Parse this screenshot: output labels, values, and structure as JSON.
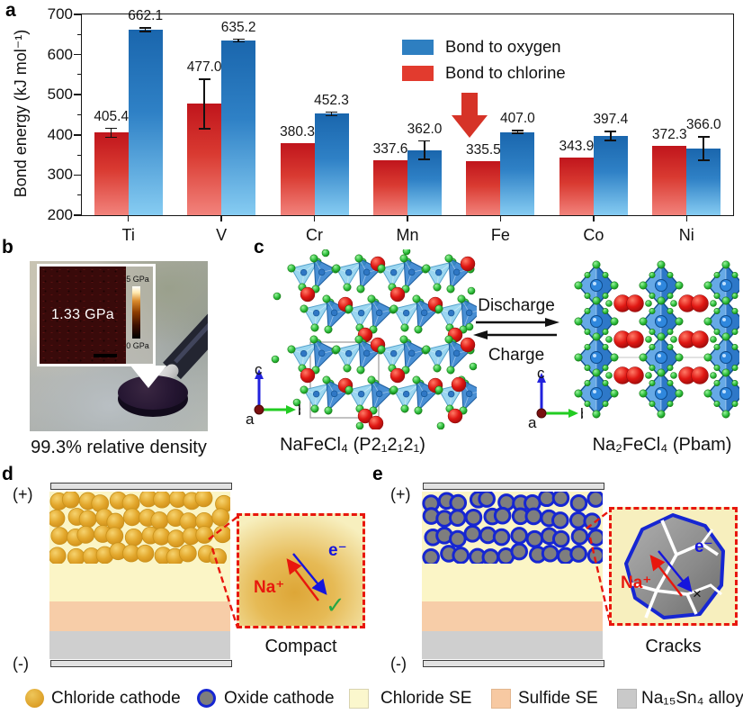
{
  "figure": {
    "panel_a_label": "a",
    "panel_b_label": "b",
    "panel_c_label": "c",
    "panel_d_label": "d",
    "panel_e_label": "e"
  },
  "chart_data": {
    "type": "bar",
    "title": "",
    "ylabel": "Bond energy (kJ mol⁻¹)",
    "ylim": [
      200,
      700
    ],
    "yticks": [
      200,
      300,
      400,
      500,
      600,
      700
    ],
    "categories": [
      "Ti",
      "V",
      "Cr",
      "Mn",
      "Fe",
      "Co",
      "Ni"
    ],
    "series": [
      {
        "name": "Bond to chlorine",
        "color": "#e23b2e",
        "values": [
          405.4,
          477.0,
          380.3,
          337.6,
          335.5,
          343.9,
          372.3
        ],
        "errors": [
          13,
          63,
          0,
          0,
          0,
          0,
          0
        ]
      },
      {
        "name": "Bond to oxygen",
        "color": "#2e7fc1",
        "values": [
          662.1,
          635.2,
          452.3,
          362.0,
          407.0,
          397.4,
          366.0
        ],
        "errors": [
          6,
          5,
          6,
          25,
          5,
          13,
          31
        ]
      }
    ],
    "legend_order": [
      "Bond to oxygen",
      "Bond to chlorine"
    ],
    "legend_position": "top-right",
    "grid": false,
    "highlight_category": "Fe"
  },
  "panel_b": {
    "inset_value": "1.33 GPa",
    "scale_top": "5 GPa",
    "scale_bottom": "0 GPa",
    "caption": "99.3% relative density"
  },
  "panel_c": {
    "left_caption": "NaFeCl₄ (P2₁2₁2₁)",
    "right_caption": "Na₂FeCl₄ (Pbam)",
    "discharge_label": "Discharge",
    "charge_label": "Charge",
    "axis": {
      "a": "a",
      "b": "b",
      "c": "c"
    }
  },
  "panel_d": {
    "positive": "(+)",
    "negative": "(-)",
    "ion_label": "Na⁺",
    "electron_label": "e⁻",
    "check": "✓",
    "caption": "Compact"
  },
  "panel_e": {
    "positive": "(+)",
    "negative": "(-)",
    "ion_label": "Na⁺",
    "electron_label": "e⁻",
    "cross": "×",
    "caption": "Cracks"
  },
  "legend": {
    "items": [
      {
        "label": "Chloride cathode",
        "swatch": "chloride-cathode"
      },
      {
        "label": "Oxide cathode",
        "swatch": "oxide-cathode"
      },
      {
        "label": "Chloride SE",
        "swatch": "chloride-se"
      },
      {
        "label": "Sulfide SE",
        "swatch": "sulfide-se"
      },
      {
        "label": "Na₁₅Sn₄ alloy",
        "swatch": "alloy"
      }
    ]
  },
  "colors": {
    "bar_blue": "#2e7fc1",
    "bar_red": "#e23b2e",
    "highlight_arrow": "#d63327",
    "inset_border": "#e8170d",
    "oxide_outline": "#1626d2"
  }
}
